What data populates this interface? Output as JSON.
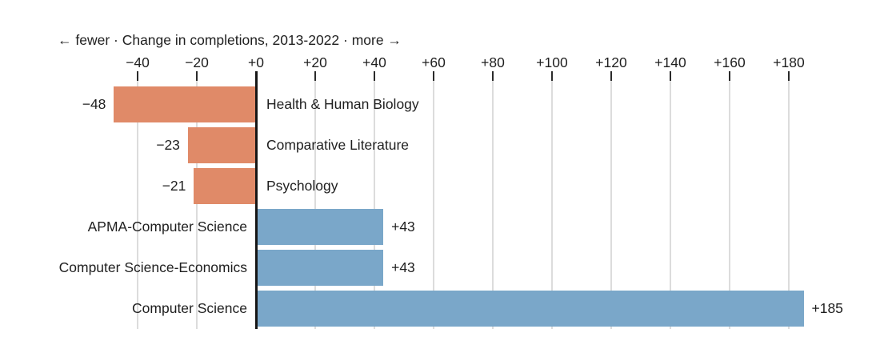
{
  "page": {
    "background": "#ffffff"
  },
  "chart_data": {
    "type": "bar",
    "orientation": "horizontal",
    "title": "← fewer · Change in completions, 2013-2022 · more →",
    "xlabel": "Change in completions, 2013-2022",
    "ylabel": "",
    "categories": [
      "Health & Human Biology",
      "Comparative Literature",
      "Psychology",
      "APMA-Computer Science",
      "Computer Science-Economics",
      "Computer Science"
    ],
    "values": [
      -48,
      -23,
      -21,
      43,
      43,
      185
    ],
    "value_labels": [
      "−48",
      "−23",
      "−21",
      "+43",
      "+43",
      "+185"
    ],
    "xticks": [
      -40,
      -20,
      0,
      20,
      40,
      60,
      80,
      100,
      120,
      140,
      160,
      180
    ],
    "xtick_labels": [
      "−40",
      "−20",
      "+0",
      "+20",
      "+40",
      "+60",
      "+80",
      "+100",
      "+120",
      "+140",
      "+160",
      "+180"
    ],
    "xlim": [
      -67,
      208
    ],
    "grid": true,
    "legend": "none",
    "colors": {
      "negative": "#e08a68",
      "positive": "#7aa7c9",
      "grid": "#dcdcdc",
      "axis": "#161616",
      "text": "#1f1f1f"
    }
  }
}
